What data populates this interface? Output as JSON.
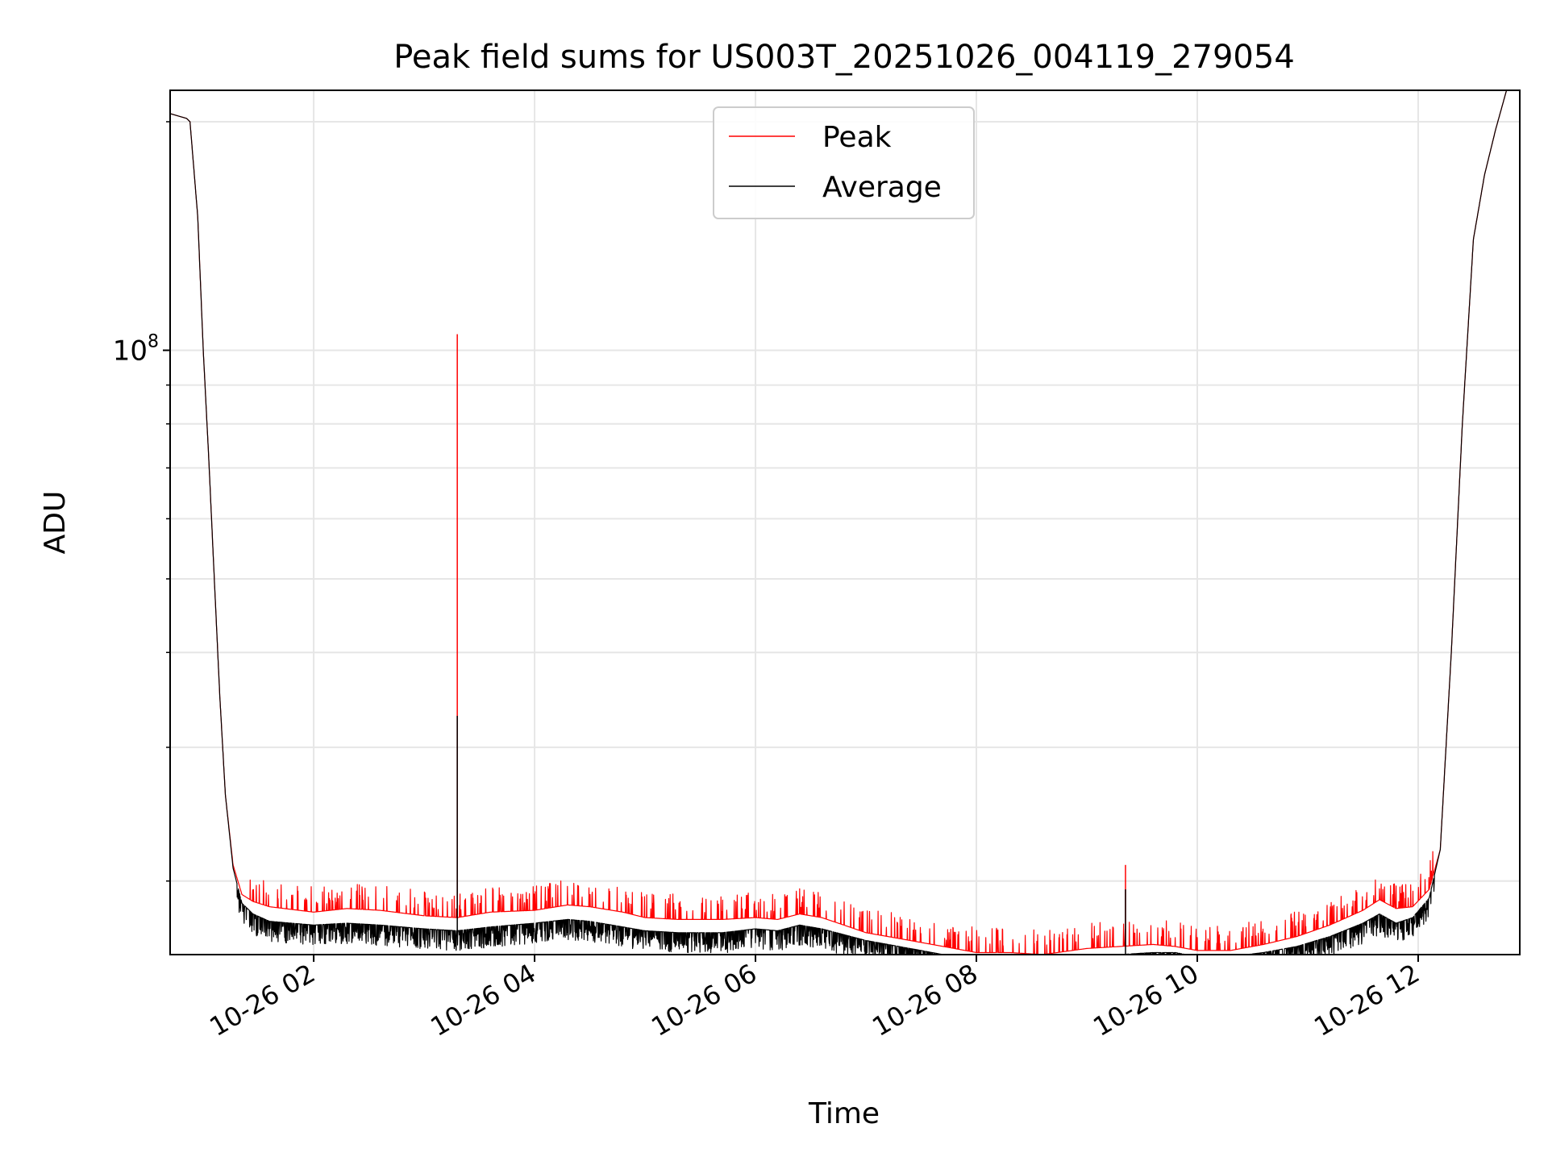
{
  "chart_data": {
    "type": "line",
    "title": "Peak field sums for US003T_20251026_004119_279054",
    "xlabel": "Time",
    "ylabel": "ADU",
    "yscale": "log",
    "grid": true,
    "legend_position": "top-center",
    "xlim_hours": [
      0.7,
      12.92
    ],
    "ylim": [
      16000000,
      220000000
    ],
    "x_tick_hours": [
      2,
      4,
      6,
      8,
      10,
      12
    ],
    "x_tick_labels": [
      "10-26 02",
      "10-26 04",
      "10-26 06",
      "10-26 08",
      "10-26 10",
      "10-26 12"
    ],
    "y_tick_labels": [
      {
        "base": "10",
        "exp": "8",
        "value": 100000000
      }
    ],
    "y_minor_ticks": [
      20000000,
      30000000,
      40000000,
      50000000,
      60000000,
      70000000,
      80000000,
      90000000,
      200000000
    ],
    "series": [
      {
        "name": "Peak",
        "color": "#ff0000",
        "x_hours": [
          0.7,
          0.85,
          0.88,
          0.95,
          1.0,
          1.05,
          1.1,
          1.15,
          1.2,
          1.27,
          1.35,
          1.45,
          1.6,
          2.0,
          2.3,
          2.6,
          3.0,
          3.3,
          3.6,
          4.0,
          4.3,
          4.5,
          4.8,
          5.0,
          5.3,
          5.7,
          6.0,
          6.2,
          6.4,
          6.6,
          6.8,
          7.0,
          7.2,
          7.5,
          7.8,
          8.0,
          8.3,
          8.6,
          9.0,
          9.3,
          9.6,
          9.8,
          10.0,
          10.3,
          10.6,
          10.9,
          11.2,
          11.5,
          11.65,
          11.8,
          11.95,
          12.1,
          12.2,
          12.3,
          12.4,
          12.5,
          12.6,
          12.7,
          12.8
        ],
        "values": [
          205000000,
          202000000,
          200000000,
          150000000,
          100000000,
          72000000,
          50000000,
          35000000,
          26000000,
          21000000,
          19200000,
          18800000,
          18500000,
          18200000,
          18400000,
          18300000,
          18000000,
          17900000,
          18200000,
          18300000,
          18600000,
          18500000,
          18200000,
          17900000,
          17800000,
          17800000,
          17900000,
          17800000,
          18100000,
          17900000,
          17500000,
          17100000,
          16900000,
          16600000,
          16300000,
          16100000,
          16100000,
          16000000,
          16300000,
          16400000,
          16500000,
          16400000,
          16200000,
          16200000,
          16500000,
          16900000,
          17500000,
          18300000,
          18900000,
          18400000,
          18500000,
          19500000,
          22000000,
          40000000,
          80000000,
          140000000,
          170000000,
          195000000,
          220000000
        ],
        "spikes": [
          {
            "x_hours": 3.3,
            "value": 105000000
          },
          {
            "x_hours": 9.35,
            "value": 21000000
          }
        ]
      },
      {
        "name": "Average",
        "color": "#000000",
        "x_hours": [
          0.7,
          0.85,
          0.88,
          0.95,
          1.0,
          1.05,
          1.1,
          1.15,
          1.2,
          1.27,
          1.35,
          1.45,
          1.6,
          2.0,
          2.3,
          2.6,
          3.0,
          3.3,
          3.6,
          4.0,
          4.3,
          4.5,
          4.8,
          5.0,
          5.3,
          5.7,
          6.0,
          6.2,
          6.4,
          6.6,
          6.8,
          7.0,
          7.2,
          7.5,
          7.8,
          8.0,
          8.3,
          8.6,
          9.0,
          9.3,
          9.6,
          9.8,
          10.0,
          10.3,
          10.6,
          10.9,
          11.2,
          11.5,
          11.65,
          11.8,
          11.95,
          12.1,
          12.2,
          12.3,
          12.4,
          12.5,
          12.6,
          12.7,
          12.8
        ],
        "values": [
          205000000,
          202000000,
          200000000,
          150000000,
          100000000,
          72000000,
          50000000,
          35000000,
          26000000,
          20800000,
          18700000,
          18100000,
          17700000,
          17500000,
          17600000,
          17500000,
          17300000,
          17200000,
          17400000,
          17600000,
          17800000,
          17700000,
          17400000,
          17200000,
          17100000,
          17100000,
          17300000,
          17200000,
          17500000,
          17300000,
          17000000,
          16700000,
          16500000,
          16200000,
          15900000,
          15800000,
          15800000,
          15700000,
          15900000,
          16000000,
          16100000,
          16100000,
          15900000,
          15900000,
          16100000,
          16400000,
          16900000,
          17600000,
          18100000,
          17600000,
          17900000,
          19000000,
          22000000,
          40000000,
          80000000,
          140000000,
          170000000,
          195000000,
          220000000
        ],
        "spikes": [
          {
            "x_hours": 3.3,
            "value": 33000000
          },
          {
            "x_hours": 9.35,
            "value": 19500000
          }
        ]
      }
    ]
  }
}
